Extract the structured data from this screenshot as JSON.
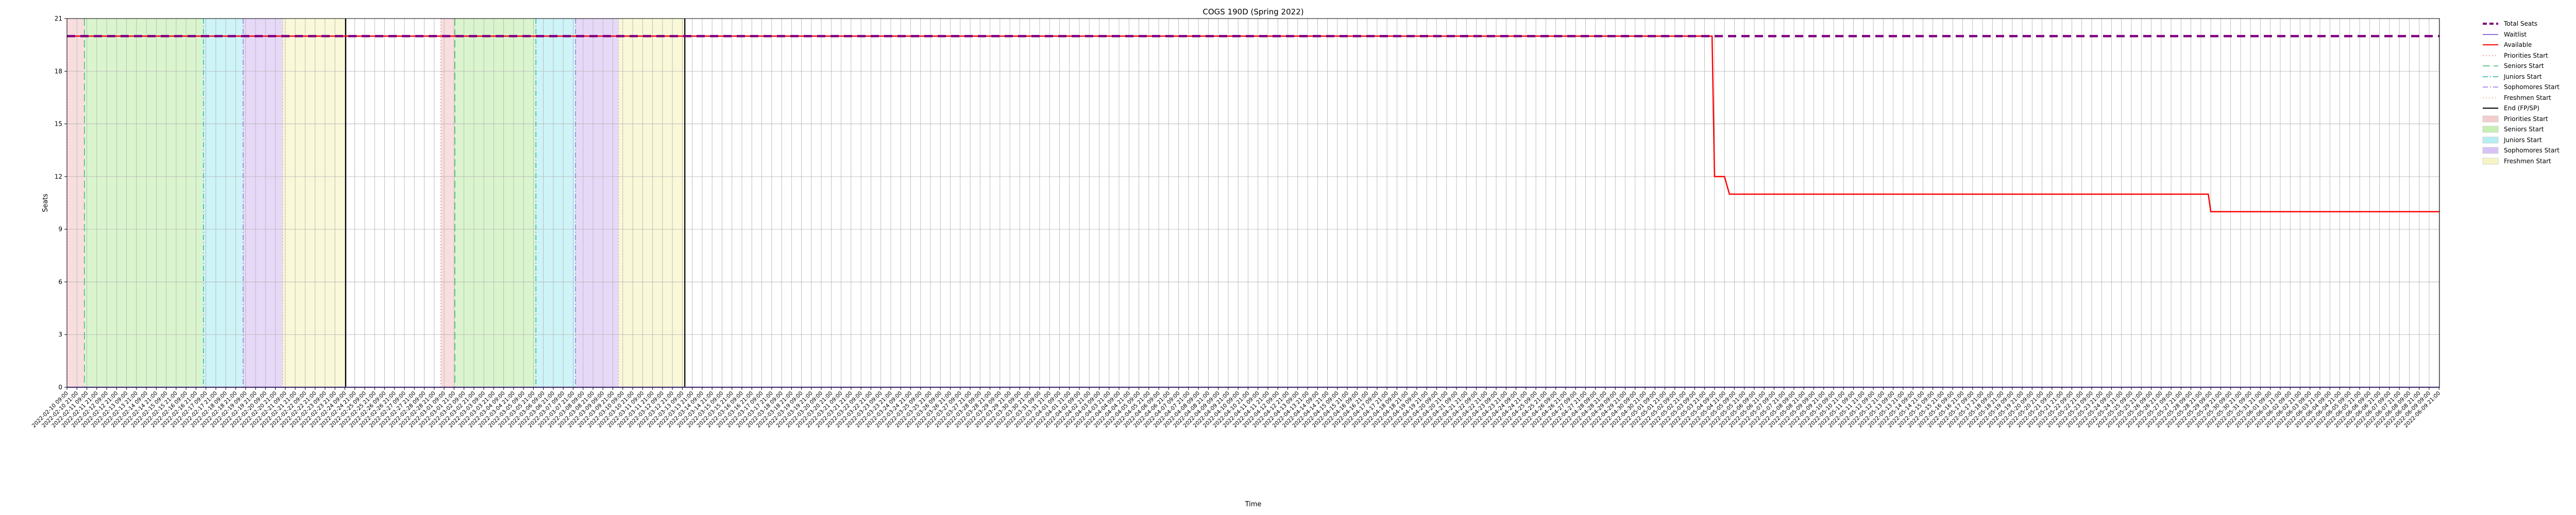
{
  "chart_data": {
    "type": "line",
    "title": "COGS 190D (Spring 2022)",
    "xlabel": "Time",
    "ylabel": "Seats",
    "ylim": [
      0,
      21
    ],
    "yticks": [
      0,
      3,
      6,
      9,
      12,
      15,
      18,
      21
    ],
    "grid": true,
    "legend_position": "outside-top-right",
    "x_start": "2022-02-10 09:00",
    "x_end": "2022-06-09 21:30",
    "series": [
      {
        "name": "Total Seats",
        "style": "dashed",
        "color": "#800080",
        "points": [
          [
            "2022-02-10 09:00",
            20
          ],
          [
            "2022-06-09 21:30",
            20
          ]
        ]
      },
      {
        "name": "Waitlist",
        "style": "solid",
        "color": "#9370db",
        "points": [
          [
            "2022-02-10 09:00",
            0
          ],
          [
            "2022-06-09 21:30",
            0
          ]
        ]
      },
      {
        "name": "Available",
        "style": "solid",
        "color": "#ff0000",
        "points": [
          [
            "2022-02-10 09:00",
            20
          ],
          [
            "2022-05-04 06:00",
            20
          ],
          [
            "2022-05-04 09:00",
            12
          ],
          [
            "2022-05-04 21:00",
            12
          ],
          [
            "2022-05-05 03:00",
            11
          ],
          [
            "2022-05-29 06:00",
            11
          ],
          [
            "2022-05-29 09:00",
            10
          ],
          [
            "2022-06-09 21:30",
            10
          ]
        ]
      }
    ],
    "periods": [
      {
        "name": "Priorities Start",
        "color": "#f4cccc",
        "start": "2022-02-10 09:00",
        "end": "2022-02-11 06:00",
        "line": "#f08080",
        "line_style": "dotted"
      },
      {
        "name": "Seniors Start",
        "color": "#c6f0b4",
        "start": "2022-02-11 06:00",
        "end": "2022-02-17 06:00",
        "line": "#3cb371",
        "line_style": "dashed"
      },
      {
        "name": "Juniors Start",
        "color": "#b4eef4",
        "start": "2022-02-17 06:00",
        "end": "2022-02-19 06:00",
        "line": "#20b2aa",
        "line_style": "dashdot"
      },
      {
        "name": "Sophomores Start",
        "color": "#d8c4f4",
        "start": "2022-02-19 06:00",
        "end": "2022-02-21 06:00",
        "line": "#9370db",
        "line_style": "dashdot"
      },
      {
        "name": "Freshmen Start",
        "color": "#f6f4c4",
        "start": "2022-02-21 06:00",
        "end": "2022-02-24 10:00",
        "line": "#d2c070",
        "line_style": "dotted"
      },
      {
        "name": "Priorities Start",
        "color": "#f4cccc",
        "start": "2022-03-01 05:00",
        "end": "2022-03-01 22:00",
        "line": "#f08080",
        "line_style": "dotted"
      },
      {
        "name": "Seniors Start",
        "color": "#c6f0b4",
        "start": "2022-03-01 22:00",
        "end": "2022-03-06 00:00",
        "line": "#3cb371",
        "line_style": "dashed"
      },
      {
        "name": "Juniors Start",
        "color": "#b4eef4",
        "start": "2022-03-06 00:00",
        "end": "2022-03-08 00:00",
        "line": "#20b2aa",
        "line_style": "dashdot"
      },
      {
        "name": "Sophomores Start",
        "color": "#d8c4f4",
        "start": "2022-03-08 00:00",
        "end": "2022-03-10 04:00",
        "line": "#9370db",
        "line_style": "dashdot"
      },
      {
        "name": "Freshmen Start",
        "color": "#f6f4c4",
        "start": "2022-03-10 04:00",
        "end": "2022-03-13 12:00",
        "line": "#d2c070",
        "line_style": "dotted"
      }
    ],
    "end_markers": [
      {
        "name": "End (FP/SP)",
        "at": "2022-02-24 10:00",
        "color": "#000000"
      },
      {
        "name": "End (FP/SP)",
        "at": "2022-03-13 12:00",
        "color": "#000000"
      }
    ],
    "x_tick_labels": [
      "2022-02-10 09:00",
      "2022-06-09 21:30"
    ],
    "legend": [
      {
        "label": "Total Seats",
        "kind": "line",
        "color": "#800080",
        "style": "dashed",
        "width": 4
      },
      {
        "label": "Waitlist",
        "kind": "line",
        "color": "#9370db",
        "style": "solid",
        "width": 2
      },
      {
        "label": "Available",
        "kind": "line",
        "color": "#ff0000",
        "style": "solid",
        "width": 2
      },
      {
        "label": "Priorities Start",
        "kind": "line",
        "color": "#f08080",
        "style": "dotted",
        "width": 1.5
      },
      {
        "label": "Seniors Start",
        "kind": "line",
        "color": "#3cb371",
        "style": "dashed",
        "width": 1.5
      },
      {
        "label": "Juniors Start",
        "kind": "line",
        "color": "#20b2aa",
        "style": "dashdot",
        "width": 1.5
      },
      {
        "label": "Sophomores Start",
        "kind": "line",
        "color": "#9370db",
        "style": "dashdot",
        "width": 1.5
      },
      {
        "label": "Freshmen Start",
        "kind": "line",
        "color": "#d2c070",
        "style": "dotted",
        "width": 1.5
      },
      {
        "label": "End (FP/SP)",
        "kind": "line",
        "color": "#000000",
        "style": "solid",
        "width": 2
      },
      {
        "label": "Priorities Start",
        "kind": "patch",
        "color": "#f4cccc"
      },
      {
        "label": "Seniors Start",
        "kind": "patch",
        "color": "#c6f0b4"
      },
      {
        "label": "Juniors Start",
        "kind": "patch",
        "color": "#b4eef4"
      },
      {
        "label": "Sophomores Start",
        "kind": "patch",
        "color": "#d8c4f4"
      },
      {
        "label": "Freshmen Start",
        "kind": "patch",
        "color": "#f6f4c4"
      }
    ]
  }
}
